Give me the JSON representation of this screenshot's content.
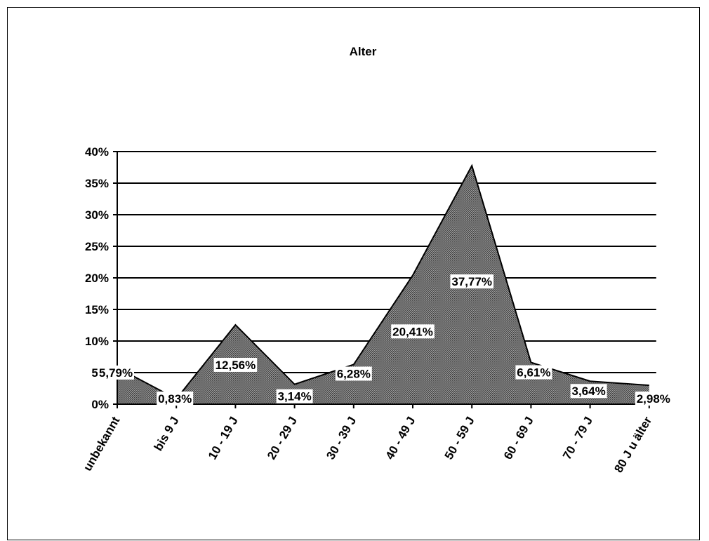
{
  "chart_data": {
    "type": "area",
    "title": "Alter",
    "xlabel": "",
    "ylabel": "",
    "ylim": [
      0,
      40
    ],
    "yticks": [
      "0%",
      "5%",
      "10%",
      "15%",
      "20%",
      "25%",
      "30%",
      "35%",
      "40%"
    ],
    "grid": true,
    "categories": [
      "unbekannt",
      "bis 9 J",
      "10 - 19 J",
      "20 - 29 J",
      "30 - 39 J",
      "40 - 49 J",
      "50 - 59 J",
      "60 - 69 J",
      "70 - 79 J",
      "80 J u älter"
    ],
    "values": [
      5.79,
      0.83,
      12.56,
      3.14,
      6.28,
      20.41,
      37.77,
      6.61,
      3.64,
      2.98
    ],
    "data_labels": [
      "5,79%",
      "0,83%",
      "12,56%",
      "3,14%",
      "6,28%",
      "20,41%",
      "37,77%",
      "6,61%",
      "3,64%",
      "2,98%"
    ],
    "fill_color": "#6e6e6e",
    "line_color": "#000000"
  }
}
